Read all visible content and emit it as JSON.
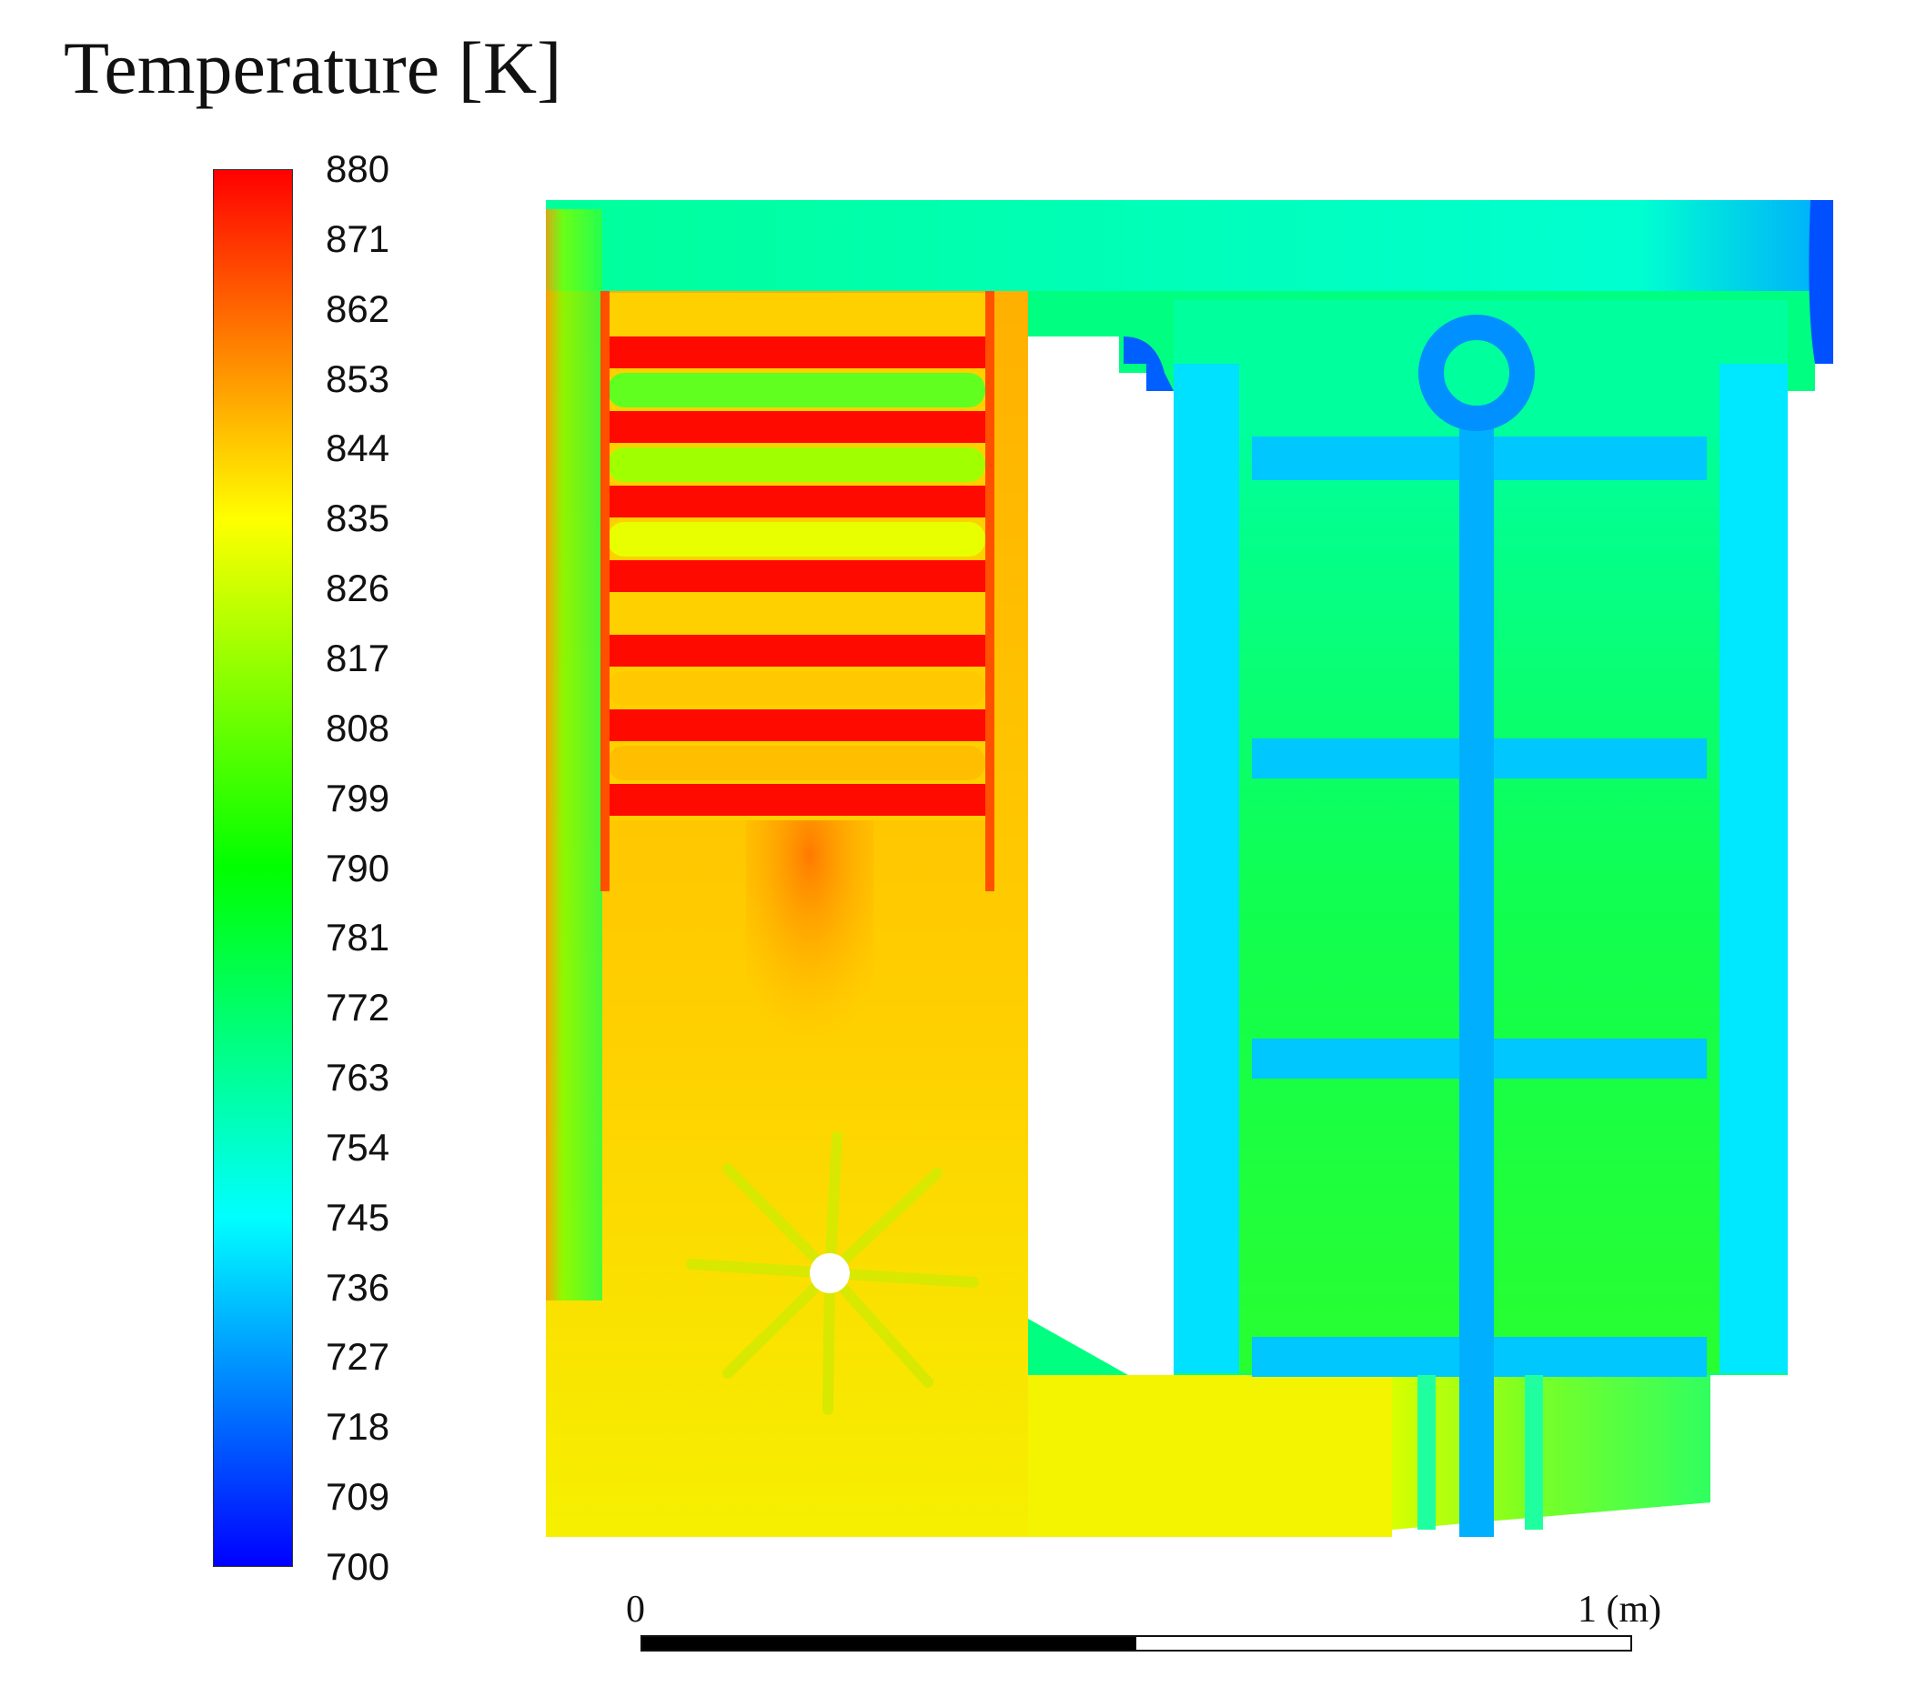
{
  "title": "Temperature [K]",
  "colorbar": {
    "min": 700,
    "max": 880,
    "ticks": [
      "880",
      "871",
      "862",
      "853",
      "844",
      "835",
      "826",
      "817",
      "808",
      "799",
      "790",
      "781",
      "772",
      "763",
      "754",
      "745",
      "736",
      "727",
      "718",
      "709",
      "700"
    ],
    "colors": [
      "#0000ff",
      "#0080ff",
      "#00ffff",
      "#00ff80",
      "#00ff00",
      "#80ff00",
      "#ffff00",
      "#ff8000",
      "#ff0000"
    ]
  },
  "scale_bar": {
    "start_label": "0",
    "end_label": "1 (m)",
    "filled_fraction": 0.5
  }
}
